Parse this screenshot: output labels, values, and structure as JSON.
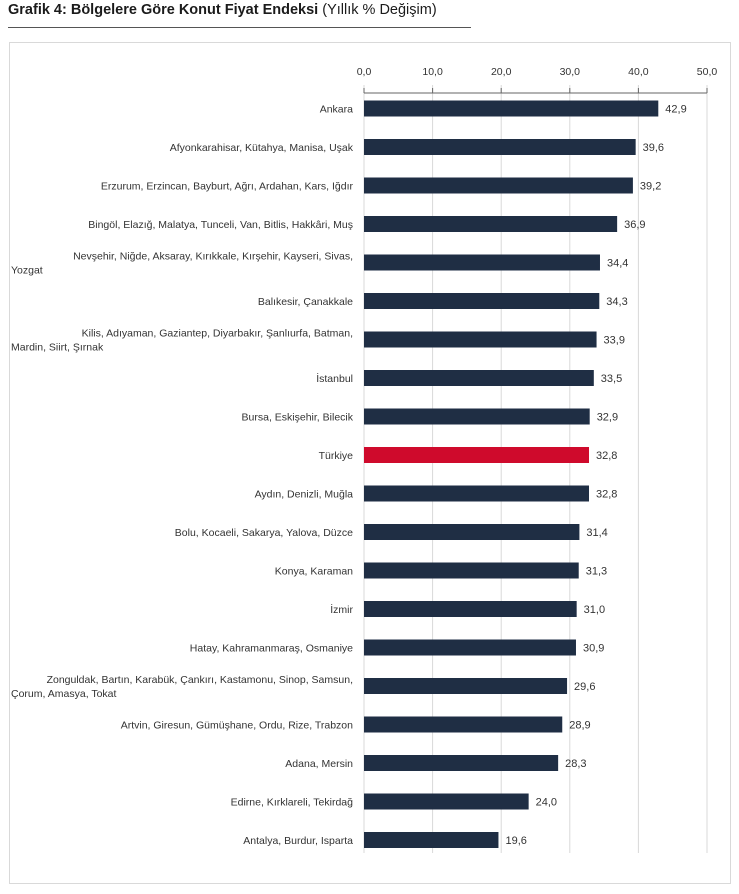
{
  "title": {
    "bold": "Grafik 4: Bölgelere Göre Konut Fiyat Endeksi",
    "normal": "(Yıllık % Değişim)"
  },
  "chart_data": {
    "type": "bar",
    "orientation": "horizontal",
    "categories": [
      "Ankara",
      "Afyonkarahisar, Kütahya, Manisa, Uşak",
      "Erzurum, Erzincan, Bayburt, Ağrı, Ardahan, Kars, Iğdır",
      "Bingöl, Elazığ, Malatya, Tunceli, Van, Bitlis, Hakkâri, Muş",
      "Nevşehir, Niğde, Aksaray, Kırıkkale, Kırşehir, Kayseri, Sivas, Yozgat",
      "Balıkesir, Çanakkale",
      "Kilis, Adıyaman, Gaziantep, Diyarbakır, Şanlıurfa, Batman, Mardin, Siirt, Şırnak",
      "İstanbul",
      "Bursa, Eskişehir, Bilecik",
      "Türkiye",
      "Aydın, Denizli, Muğla",
      "Bolu, Kocaeli, Sakarya, Yalova, Düzce",
      "Konya, Karaman",
      "İzmir",
      "Hatay, Kahramanmaraş, Osmaniye",
      "Zonguldak, Bartın, Karabük, Çankırı, Kastamonu, Sinop, Samsun, Çorum, Amasya, Tokat",
      "Artvin, Giresun, Gümüşhane, Ordu, Rize, Trabzon",
      "Adana, Mersin",
      "Edirne, Kırklareli, Tekirdağ",
      "Antalya, Burdur, Isparta"
    ],
    "category_lines": [
      [
        "Ankara"
      ],
      [
        "Afyonkarahisar, Kütahya, Manisa, Uşak"
      ],
      [
        "Erzurum, Erzincan, Bayburt, Ağrı, Ardahan, Kars, Iğdır"
      ],
      [
        "Bingöl, Elazığ, Malatya, Tunceli, Van, Bitlis, Hakkâri, Muş"
      ],
      [
        "Nevşehir, Niğde, Aksaray, Kırıkkale, Kırşehir, Kayseri, Sivas,",
        "Yozgat"
      ],
      [
        "Balıkesir, Çanakkale"
      ],
      [
        "Kilis, Adıyaman, Gaziantep, Diyarbakır, Şanlıurfa, Batman,",
        "Mardin, Siirt, Şırnak"
      ],
      [
        "İstanbul"
      ],
      [
        "Bursa, Eskişehir, Bilecik"
      ],
      [
        "Türkiye"
      ],
      [
        "Aydın, Denizli, Muğla"
      ],
      [
        "Bolu, Kocaeli, Sakarya, Yalova, Düzce"
      ],
      [
        "Konya, Karaman"
      ],
      [
        "İzmir"
      ],
      [
        "Hatay, Kahramanmaraş, Osmaniye"
      ],
      [
        "Zonguldak, Bartın, Karabük, Çankırı, Kastamonu, Sinop, Samsun,",
        "Çorum, Amasya, Tokat"
      ],
      [
        "Artvin, Giresun, Gümüşhane, Ordu, Rize, Trabzon"
      ],
      [
        "Adana, Mersin"
      ],
      [
        "Edirne, Kırklareli, Tekirdağ"
      ],
      [
        "Antalya, Burdur, Isparta"
      ]
    ],
    "values": [
      42.9,
      39.6,
      39.2,
      36.9,
      34.4,
      34.3,
      33.9,
      33.5,
      32.9,
      32.8,
      32.8,
      31.4,
      31.3,
      31.0,
      30.9,
      29.6,
      28.9,
      28.3,
      24.0,
      19.6
    ],
    "value_labels": [
      "42,9",
      "39,6",
      "39,2",
      "36,9",
      "34,4",
      "34,3",
      "33,9",
      "33,5",
      "32,9",
      "32,8",
      "32,8",
      "31,4",
      "31,3",
      "31,0",
      "30,9",
      "29,6",
      "28,9",
      "28,3",
      "24,0",
      "19,6"
    ],
    "highlight_category": "Türkiye",
    "xlim": [
      0,
      50
    ],
    "ticks": [
      0,
      10,
      20,
      30,
      40,
      50
    ],
    "tick_labels": [
      "0,0",
      "10,0",
      "20,0",
      "30,0",
      "40,0",
      "50,0"
    ],
    "axis_position": "top",
    "grid": "vertical",
    "xlabel": "",
    "ylabel": "",
    "colors": {
      "bar": "#1f2e44",
      "highlight": "#cf0a2c",
      "grid": "#d9d9d9",
      "text": "#333333"
    }
  }
}
